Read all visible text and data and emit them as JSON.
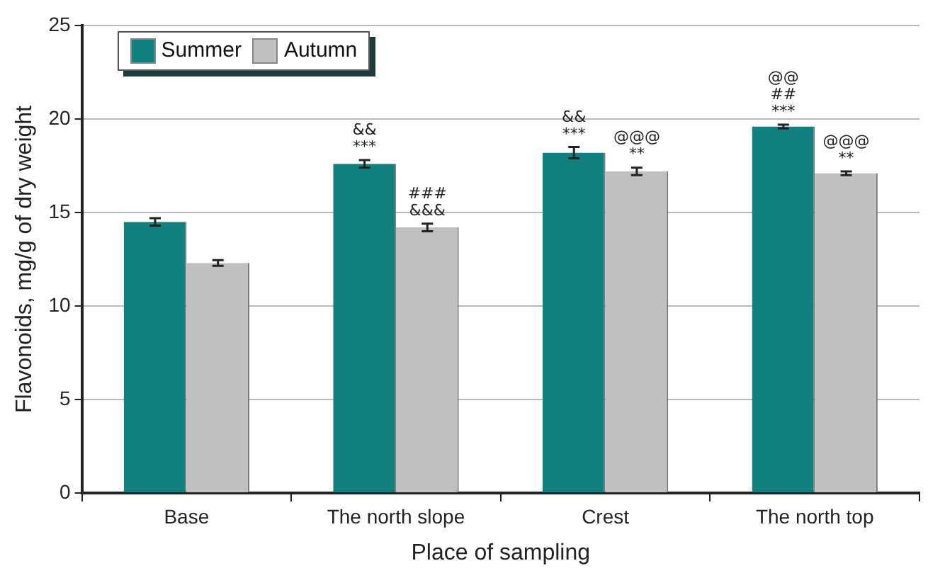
{
  "chart_data": {
    "type": "bar",
    "xlabel": "Place of sampling",
    "ylabel": "Flavonoids, mg/g of dry weight",
    "categories": [
      "Base",
      "The north slope",
      "Crest",
      "The north top"
    ],
    "series": [
      {
        "name": "Summer",
        "color": "#11807f",
        "values": [
          14.5,
          17.6,
          18.2,
          19.6
        ],
        "errors": [
          0.2,
          0.2,
          0.3,
          0.1
        ],
        "value_labels": [
          null,
          "&&\n***",
          "&&\n***",
          "@@\n##\n***"
        ]
      },
      {
        "name": "Autumn",
        "color": "#c0c0c0",
        "values": [
          12.3,
          14.2,
          17.2,
          17.1
        ],
        "errors": [
          0.15,
          0.2,
          0.2,
          0.1
        ],
        "value_labels": [
          null,
          "###\n&&&",
          "@@@\n**",
          "@@@\n**"
        ]
      }
    ],
    "ylim": [
      0,
      25
    ],
    "yticks": [
      0,
      5,
      10,
      15,
      20,
      25
    ],
    "grid": "y",
    "legend": "top left"
  }
}
